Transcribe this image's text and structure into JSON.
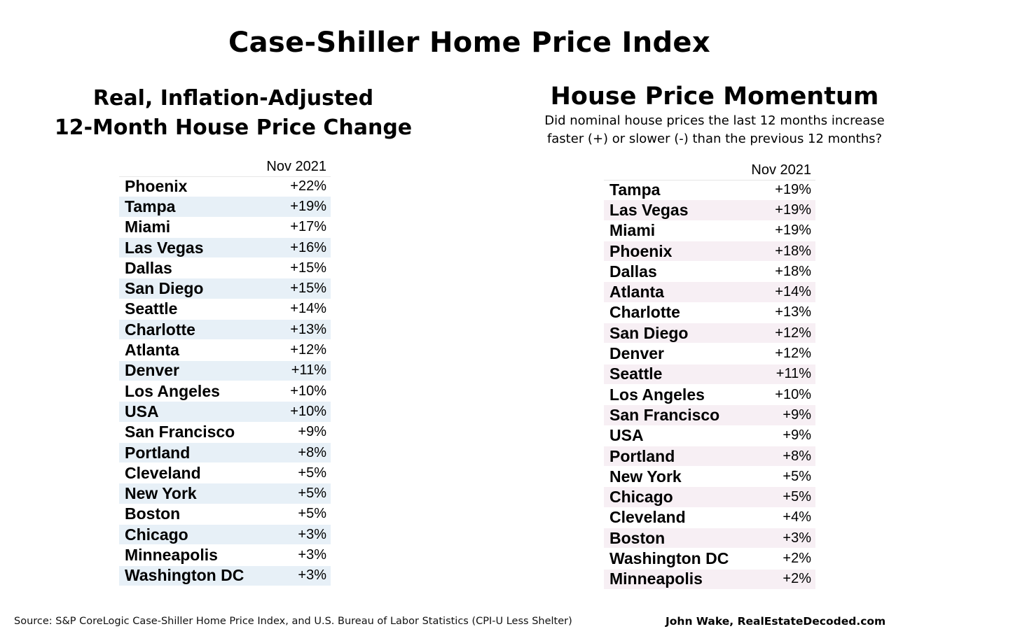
{
  "title": "Case-Shiller Home Price Index",
  "footer": {
    "source": "Source: S&P CoreLogic Case-Shiller Home Price Index, and U.S. Bureau of Labor Statistics (CPI-U Less Shelter)",
    "author": "John Wake, RealEstateDecoded.com"
  },
  "colors": {
    "left_stripe": "#e7f0f7",
    "right_stripe": "#f7eff4",
    "base": "#ffffff"
  },
  "chart_data": [
    {
      "type": "table",
      "title_line1": "Real, Inflation-Adjusted",
      "title_line2": "12-Month House Price Change",
      "column_header": "Nov 2021",
      "rows": [
        {
          "city": "Phoenix",
          "value": "+22%"
        },
        {
          "city": "Tampa",
          "value": "+19%"
        },
        {
          "city": "Miami",
          "value": "+17%"
        },
        {
          "city": "Las Vegas",
          "value": "+16%"
        },
        {
          "city": "Dallas",
          "value": "+15%"
        },
        {
          "city": "San Diego",
          "value": "+15%"
        },
        {
          "city": "Seattle",
          "value": "+14%"
        },
        {
          "city": "Charlotte",
          "value": "+13%"
        },
        {
          "city": "Atlanta",
          "value": "+12%"
        },
        {
          "city": "Denver",
          "value": "+11%"
        },
        {
          "city": "Los Angeles",
          "value": "+10%"
        },
        {
          "city": "USA",
          "value": "+10%"
        },
        {
          "city": "San Francisco",
          "value": "+9%"
        },
        {
          "city": "Portland",
          "value": "+8%"
        },
        {
          "city": "Cleveland",
          "value": "+5%"
        },
        {
          "city": "New York",
          "value": "+5%"
        },
        {
          "city": "Boston",
          "value": "+5%"
        },
        {
          "city": "Chicago",
          "value": "+3%"
        },
        {
          "city": "Minneapolis",
          "value": "+3%"
        },
        {
          "city": "Washington DC",
          "value": "+3%"
        }
      ]
    },
    {
      "type": "table",
      "title": "House Price Momentum",
      "subtitle_line1": "Did nominal house prices the last 12 months increase",
      "subtitle_line2": "faster (+) or slower (-) than the previous 12 months?",
      "column_header": "Nov 2021",
      "rows": [
        {
          "city": "Tampa",
          "value": "+19%"
        },
        {
          "city": "Las Vegas",
          "value": "+19%"
        },
        {
          "city": "Miami",
          "value": "+19%"
        },
        {
          "city": "Phoenix",
          "value": "+18%"
        },
        {
          "city": "Dallas",
          "value": "+18%"
        },
        {
          "city": "Atlanta",
          "value": "+14%"
        },
        {
          "city": "Charlotte",
          "value": "+13%"
        },
        {
          "city": "San Diego",
          "value": "+12%"
        },
        {
          "city": "Denver",
          "value": "+12%"
        },
        {
          "city": "Seattle",
          "value": "+11%"
        },
        {
          "city": "Los Angeles",
          "value": "+10%"
        },
        {
          "city": "San Francisco",
          "value": "+9%"
        },
        {
          "city": "USA",
          "value": "+9%"
        },
        {
          "city": "Portland",
          "value": "+8%"
        },
        {
          "city": "New York",
          "value": "+5%"
        },
        {
          "city": "Chicago",
          "value": "+5%"
        },
        {
          "city": "Cleveland",
          "value": "+4%"
        },
        {
          "city": "Boston",
          "value": "+3%"
        },
        {
          "city": "Washington DC",
          "value": "+2%"
        },
        {
          "city": "Minneapolis",
          "value": "+2%"
        }
      ]
    }
  ]
}
